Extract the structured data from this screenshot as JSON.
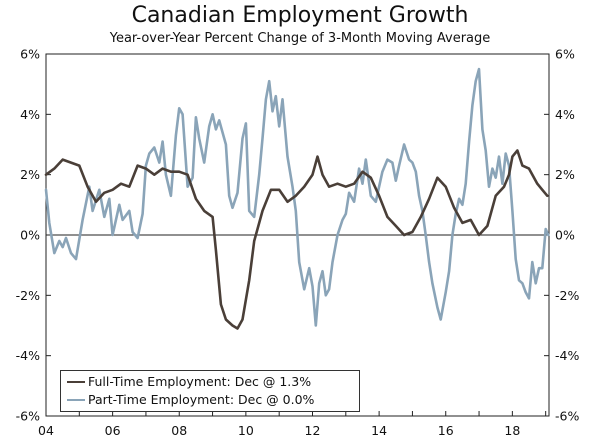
{
  "chart_data": {
    "type": "line",
    "title": "Canadian Employment Growth",
    "subtitle": "Year-over-Year Percent Change of 3-Month Moving Average",
    "ylim": [
      -6,
      6
    ],
    "y_ticks": [
      "6%",
      "4%",
      "2%",
      "0%",
      "-2%",
      "-4%",
      "-6%"
    ],
    "x_range": [
      2004.0,
      2019.1
    ],
    "x_ticks": [
      {
        "label": "04",
        "year": 2004
      },
      {
        "label": "06",
        "year": 2006
      },
      {
        "label": "08",
        "year": 2008
      },
      {
        "label": "10",
        "year": 2010
      },
      {
        "label": "12",
        "year": 2012
      },
      {
        "label": "14",
        "year": 2014
      },
      {
        "label": "16",
        "year": 2016
      },
      {
        "label": "18",
        "year": 2018
      }
    ],
    "series": [
      {
        "name": "Full-Time Employment",
        "legend_label": "Full-Time Employment: Dec @ 1.3%",
        "color": "#4a3f38",
        "points": [
          [
            2004.0,
            2.0
          ],
          [
            2004.25,
            2.2
          ],
          [
            2004.5,
            2.5
          ],
          [
            2004.75,
            2.4
          ],
          [
            2005.0,
            2.3
          ],
          [
            2005.25,
            1.6
          ],
          [
            2005.5,
            1.1
          ],
          [
            2005.75,
            1.4
          ],
          [
            2006.0,
            1.5
          ],
          [
            2006.25,
            1.7
          ],
          [
            2006.5,
            1.6
          ],
          [
            2006.75,
            2.3
          ],
          [
            2007.0,
            2.2
          ],
          [
            2007.25,
            2.0
          ],
          [
            2007.5,
            2.2
          ],
          [
            2007.75,
            2.1
          ],
          [
            2008.0,
            2.1
          ],
          [
            2008.25,
            2.0
          ],
          [
            2008.5,
            1.2
          ],
          [
            2008.75,
            0.8
          ],
          [
            2009.0,
            0.6
          ],
          [
            2009.1,
            -0.5
          ],
          [
            2009.25,
            -2.3
          ],
          [
            2009.4,
            -2.8
          ],
          [
            2009.6,
            -3.0
          ],
          [
            2009.75,
            -3.1
          ],
          [
            2009.9,
            -2.8
          ],
          [
            2010.1,
            -1.5
          ],
          [
            2010.25,
            -0.2
          ],
          [
            2010.5,
            0.8
          ],
          [
            2010.75,
            1.5
          ],
          [
            2011.0,
            1.5
          ],
          [
            2011.25,
            1.1
          ],
          [
            2011.5,
            1.3
          ],
          [
            2011.75,
            1.6
          ],
          [
            2012.0,
            2.0
          ],
          [
            2012.15,
            2.6
          ],
          [
            2012.3,
            2.0
          ],
          [
            2012.5,
            1.6
          ],
          [
            2012.75,
            1.7
          ],
          [
            2013.0,
            1.6
          ],
          [
            2013.25,
            1.7
          ],
          [
            2013.5,
            2.1
          ],
          [
            2013.75,
            1.9
          ],
          [
            2014.0,
            1.3
          ],
          [
            2014.25,
            0.6
          ],
          [
            2014.5,
            0.3
          ],
          [
            2014.75,
            0.0
          ],
          [
            2015.0,
            0.1
          ],
          [
            2015.25,
            0.6
          ],
          [
            2015.5,
            1.2
          ],
          [
            2015.75,
            1.9
          ],
          [
            2016.0,
            1.6
          ],
          [
            2016.25,
            0.9
          ],
          [
            2016.5,
            0.4
          ],
          [
            2016.75,
            0.5
          ],
          [
            2017.0,
            0.0
          ],
          [
            2017.25,
            0.3
          ],
          [
            2017.5,
            1.3
          ],
          [
            2017.75,
            1.6
          ],
          [
            2017.9,
            2.0
          ],
          [
            2018.0,
            2.6
          ],
          [
            2018.15,
            2.8
          ],
          [
            2018.3,
            2.3
          ],
          [
            2018.5,
            2.2
          ],
          [
            2018.75,
            1.7
          ],
          [
            2018.9,
            1.5
          ],
          [
            2019.05,
            1.3
          ]
        ]
      },
      {
        "name": "Part-Time Employment",
        "legend_label": "Part-Time Employment: Dec @ 0.0%",
        "color": "#8aa4b8",
        "points": [
          [
            2004.0,
            1.5
          ],
          [
            2004.1,
            0.4
          ],
          [
            2004.25,
            -0.6
          ],
          [
            2004.4,
            -0.2
          ],
          [
            2004.5,
            -0.4
          ],
          [
            2004.6,
            -0.1
          ],
          [
            2004.75,
            -0.6
          ],
          [
            2004.9,
            -0.8
          ],
          [
            2005.1,
            0.5
          ],
          [
            2005.3,
            1.6
          ],
          [
            2005.4,
            0.8
          ],
          [
            2005.6,
            1.5
          ],
          [
            2005.75,
            0.6
          ],
          [
            2005.9,
            1.2
          ],
          [
            2006.0,
            0.0
          ],
          [
            2006.2,
            1.0
          ],
          [
            2006.3,
            0.5
          ],
          [
            2006.5,
            0.8
          ],
          [
            2006.6,
            0.1
          ],
          [
            2006.75,
            -0.1
          ],
          [
            2006.9,
            0.7
          ],
          [
            2007.0,
            2.3
          ],
          [
            2007.1,
            2.7
          ],
          [
            2007.25,
            2.9
          ],
          [
            2007.4,
            2.4
          ],
          [
            2007.5,
            3.1
          ],
          [
            2007.6,
            2.0
          ],
          [
            2007.75,
            1.3
          ],
          [
            2007.9,
            3.3
          ],
          [
            2008.0,
            4.2
          ],
          [
            2008.1,
            4.0
          ],
          [
            2008.25,
            1.6
          ],
          [
            2008.4,
            1.9
          ],
          [
            2008.5,
            3.9
          ],
          [
            2008.6,
            3.2
          ],
          [
            2008.75,
            2.4
          ],
          [
            2008.9,
            3.6
          ],
          [
            2009.0,
            4.0
          ],
          [
            2009.1,
            3.5
          ],
          [
            2009.2,
            3.8
          ],
          [
            2009.4,
            3.0
          ],
          [
            2009.5,
            1.3
          ],
          [
            2009.6,
            0.9
          ],
          [
            2009.75,
            1.4
          ],
          [
            2009.9,
            3.2
          ],
          [
            2010.0,
            3.7
          ],
          [
            2010.1,
            0.8
          ],
          [
            2010.25,
            0.6
          ],
          [
            2010.4,
            2.0
          ],
          [
            2010.5,
            3.2
          ],
          [
            2010.6,
            4.5
          ],
          [
            2010.7,
            5.1
          ],
          [
            2010.8,
            4.1
          ],
          [
            2010.9,
            4.6
          ],
          [
            2011.0,
            3.6
          ],
          [
            2011.1,
            4.5
          ],
          [
            2011.25,
            2.6
          ],
          [
            2011.4,
            1.6
          ],
          [
            2011.5,
            0.8
          ],
          [
            2011.6,
            -0.9
          ],
          [
            2011.75,
            -1.8
          ],
          [
            2011.9,
            -1.1
          ],
          [
            2012.0,
            -1.7
          ],
          [
            2012.1,
            -3.0
          ],
          [
            2012.2,
            -1.6
          ],
          [
            2012.3,
            -1.2
          ],
          [
            2012.4,
            -2.0
          ],
          [
            2012.5,
            -1.8
          ],
          [
            2012.6,
            -0.9
          ],
          [
            2012.75,
            0.0
          ],
          [
            2012.9,
            0.5
          ],
          [
            2013.0,
            0.7
          ],
          [
            2013.1,
            1.4
          ],
          [
            2013.25,
            1.1
          ],
          [
            2013.4,
            2.2
          ],
          [
            2013.5,
            1.7
          ],
          [
            2013.6,
            2.5
          ],
          [
            2013.75,
            1.3
          ],
          [
            2013.9,
            1.1
          ],
          [
            2014.0,
            1.6
          ],
          [
            2014.1,
            2.1
          ],
          [
            2014.25,
            2.5
          ],
          [
            2014.4,
            2.4
          ],
          [
            2014.5,
            1.8
          ],
          [
            2014.6,
            2.3
          ],
          [
            2014.75,
            3.0
          ],
          [
            2014.9,
            2.5
          ],
          [
            2015.0,
            2.4
          ],
          [
            2015.1,
            2.1
          ],
          [
            2015.2,
            1.3
          ],
          [
            2015.3,
            0.8
          ],
          [
            2015.4,
            0.0
          ],
          [
            2015.5,
            -0.9
          ],
          [
            2015.6,
            -1.6
          ],
          [
            2015.75,
            -2.4
          ],
          [
            2015.85,
            -2.8
          ],
          [
            2016.0,
            -1.9
          ],
          [
            2016.1,
            -1.2
          ],
          [
            2016.2,
            0.0
          ],
          [
            2016.3,
            0.7
          ],
          [
            2016.4,
            1.2
          ],
          [
            2016.5,
            1.0
          ],
          [
            2016.6,
            1.7
          ],
          [
            2016.7,
            3.1
          ],
          [
            2016.8,
            4.3
          ],
          [
            2016.9,
            5.1
          ],
          [
            2017.0,
            5.5
          ],
          [
            2017.1,
            3.5
          ],
          [
            2017.2,
            2.8
          ],
          [
            2017.3,
            1.6
          ],
          [
            2017.4,
            2.2
          ],
          [
            2017.5,
            1.9
          ],
          [
            2017.6,
            2.6
          ],
          [
            2017.7,
            1.7
          ],
          [
            2017.8,
            2.7
          ],
          [
            2017.9,
            2.3
          ],
          [
            2018.0,
            0.8
          ],
          [
            2018.1,
            -0.8
          ],
          [
            2018.2,
            -1.5
          ],
          [
            2018.3,
            -1.6
          ],
          [
            2018.4,
            -1.9
          ],
          [
            2018.5,
            -2.1
          ],
          [
            2018.6,
            -0.9
          ],
          [
            2018.7,
            -1.6
          ],
          [
            2018.8,
            -1.1
          ],
          [
            2018.9,
            -1.1
          ],
          [
            2019.0,
            0.2
          ],
          [
            2019.08,
            0.0
          ]
        ]
      }
    ]
  }
}
